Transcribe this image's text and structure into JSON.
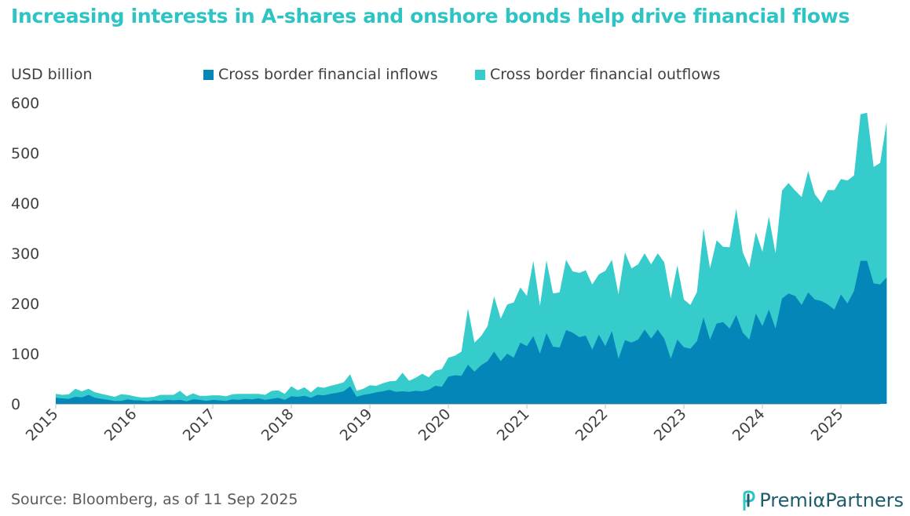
{
  "title": "Increasing interests in A-shares and onshore bonds help drive financial flows",
  "source": "Source: Bloomberg, as of 11 Sep 2025",
  "brand": {
    "name": "PremiαPartners",
    "icon": "p-logo-icon"
  },
  "colors": {
    "title": "#2ec4c4",
    "inflows": "#0586b9",
    "outflows": "#36cccc"
  },
  "chart_data": {
    "type": "area",
    "stacked": true,
    "ylabel": "USD billion",
    "ylim": [
      0,
      600
    ],
    "yticks": [
      "0",
      "100",
      "200",
      "300",
      "400",
      "500",
      "600"
    ],
    "xticks": [
      "2015",
      "2016",
      "2017",
      "2018",
      "2019",
      "2020",
      "2021",
      "2022",
      "2023",
      "2024",
      "2025"
    ],
    "legend_position": "top",
    "x_start": "2015-01",
    "x_end": "2025-07",
    "frequency": "monthly",
    "series": [
      {
        "name": "Cross border financial inflows",
        "values": [
          12,
          11,
          10,
          14,
          13,
          18,
          12,
          10,
          8,
          6,
          6,
          9,
          7,
          7,
          5,
          7,
          6,
          8,
          7,
          8,
          5,
          9,
          8,
          6,
          8,
          7,
          6,
          9,
          8,
          10,
          9,
          11,
          8,
          10,
          12,
          8,
          15,
          14,
          16,
          12,
          18,
          17,
          20,
          22,
          25,
          35,
          14,
          18,
          20,
          23,
          25,
          28,
          24,
          25,
          24,
          26,
          25,
          28,
          36,
          34,
          54,
          57,
          56,
          78,
          64,
          77,
          85,
          104,
          85,
          100,
          92,
          122,
          115,
          135,
          100,
          141,
          114,
          112,
          147,
          142,
          133,
          136,
          108,
          138,
          115,
          145,
          90,
          127,
          122,
          128,
          148,
          130,
          148,
          130,
          90,
          128,
          113,
          110,
          125,
          172,
          128,
          160,
          163,
          150,
          177,
          142,
          128,
          180,
          155,
          188,
          150,
          210,
          220,
          215,
          197,
          222,
          208,
          205,
          198,
          188,
          218,
          200,
          225,
          285,
          285,
          240,
          238,
          252
        ]
      },
      {
        "name": "Cross border financial outflows",
        "values": [
          8,
          7,
          9,
          16,
          12,
          12,
          11,
          10,
          9,
          8,
          13,
          9,
          8,
          6,
          8,
          7,
          12,
          10,
          11,
          18,
          10,
          12,
          8,
          10,
          9,
          10,
          9,
          10,
          12,
          10,
          11,
          9,
          10,
          16,
          15,
          12,
          20,
          13,
          17,
          11,
          16,
          15,
          16,
          17,
          18,
          24,
          12,
          12,
          17,
          13,
          16,
          17,
          22,
          37,
          22,
          26,
          35,
          25,
          30,
          35,
          38,
          39,
          48,
          112,
          58,
          58,
          70,
          110,
          85,
          98,
          110,
          110,
          100,
          150,
          95,
          145,
          106,
          110,
          140,
          122,
          128,
          130,
          130,
          120,
          150,
          142,
          128,
          175,
          148,
          150,
          152,
          148,
          152,
          152,
          120,
          148,
          95,
          87,
          98,
          178,
          142,
          166,
          150,
          162,
          212,
          160,
          144,
          162,
          148,
          185,
          150,
          215,
          220,
          210,
          215,
          242,
          210,
          196,
          228,
          238,
          230,
          245,
          230,
          292,
          295,
          232,
          242,
          310
        ]
      }
    ]
  }
}
